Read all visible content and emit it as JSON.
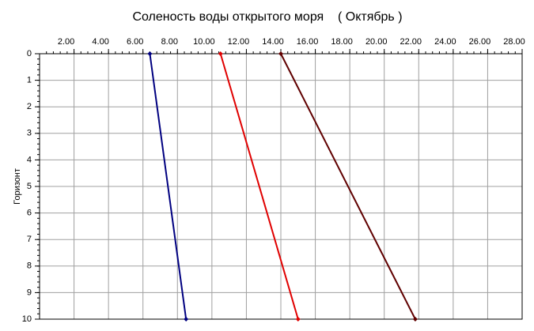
{
  "chart_data": {
    "type": "line",
    "title": "Соленость воды открытого моря    ( Октябрь )",
    "y_label": "Горизонт",
    "x_axis_position": "top",
    "y_inverted": true,
    "grid": true,
    "xlim": [
      0,
      28
    ],
    "xticks": [
      {
        "value": 2,
        "label": "2.00"
      },
      {
        "value": 4,
        "label": "4.00"
      },
      {
        "value": 6,
        "label": "6.00"
      },
      {
        "value": 8,
        "label": "8.00"
      },
      {
        "value": 10,
        "label": "10.00"
      },
      {
        "value": 12,
        "label": "12.00"
      },
      {
        "value": 14,
        "label": "14.00"
      },
      {
        "value": 16,
        "label": "16.00"
      },
      {
        "value": 18,
        "label": "18.00"
      },
      {
        "value": 20,
        "label": "20.00"
      },
      {
        "value": 22,
        "label": "22.00"
      },
      {
        "value": 24,
        "label": "24.00"
      },
      {
        "value": 26,
        "label": "26.00"
      },
      {
        "value": 28,
        "label": "28.00"
      }
    ],
    "ylim": [
      0,
      10
    ],
    "yticks": [
      0,
      1,
      2,
      3,
      4,
      5,
      6,
      7,
      8,
      9,
      10
    ],
    "series": [
      {
        "color": "#000080",
        "x": [
          6.4,
          8.5
        ],
        "values": [
          0,
          10
        ]
      },
      {
        "color": "#e00000",
        "x": [
          10.5,
          15.0
        ],
        "values": [
          0,
          10
        ]
      },
      {
        "color": "#600000",
        "x": [
          14.0,
          21.8
        ],
        "values": [
          0,
          10
        ]
      }
    ]
  }
}
